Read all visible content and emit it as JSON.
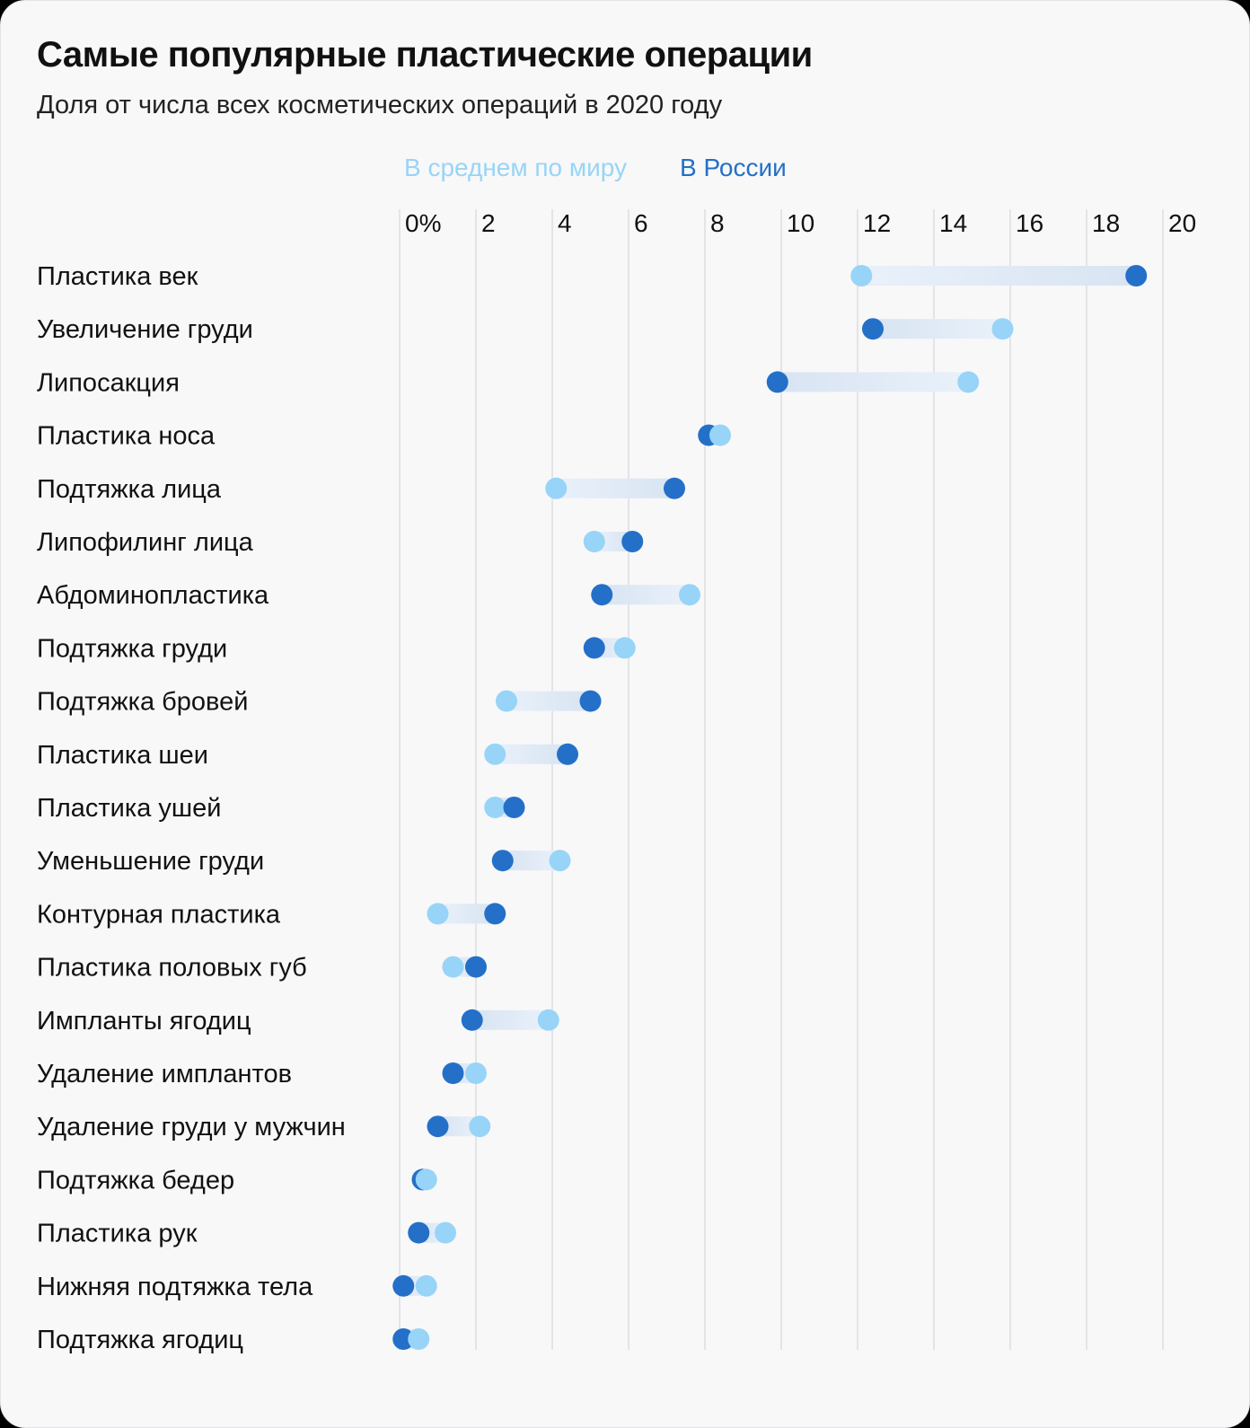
{
  "title": "Самые популярные пластические операции",
  "subtitle": "Доля от числа всех косметических операций в 2020 году",
  "colors": {
    "world": "#98d4f7",
    "russia": "#2470c8",
    "grid": "#dcdde0",
    "text": "#111111"
  },
  "chart_data": {
    "type": "dumbbell",
    "title": "Самые популярные пластические операции",
    "subtitle": "Доля от числа всех косметических операций в 2020 году",
    "xlim": [
      0,
      20
    ],
    "xticks": [
      0,
      2,
      4,
      6,
      8,
      10,
      12,
      14,
      16,
      18,
      20
    ],
    "xtick_labels": [
      "0%",
      "2",
      "4",
      "6",
      "8",
      "10",
      "12",
      "14",
      "16",
      "18",
      "20"
    ],
    "legend": [
      {
        "name": "В среднем по миру",
        "key": "world"
      },
      {
        "name": "В России",
        "key": "russia"
      }
    ],
    "legend_position": "top",
    "categories": [
      "Пластика век",
      "Увеличение груди",
      "Липосакция",
      "Пластика носа",
      "Подтяжка лица",
      "Липофилинг лица",
      "Абдоминопластика",
      "Подтяжка груди",
      "Подтяжка бровей",
      "Пластика шеи",
      "Пластика ушей",
      "Уменьшение груди",
      "Контурная пластика",
      "Пластика половых губ",
      "Импланты ягодиц",
      "Удаление имплантов",
      "Удаление груди у мужчин",
      "Подтяжка бедер",
      "Пластика рук",
      "Нижняя подтяжка тела",
      "Подтяжка ягодиц"
    ],
    "series": [
      {
        "name": "В среднем по миру",
        "key": "world",
        "values": [
          12.1,
          15.8,
          14.9,
          8.4,
          4.1,
          5.1,
          7.6,
          5.9,
          2.8,
          2.5,
          2.5,
          4.2,
          1.0,
          1.4,
          3.9,
          2.0,
          2.1,
          0.7,
          1.2,
          0.7,
          0.5
        ]
      },
      {
        "name": "В России",
        "key": "russia",
        "values": [
          19.3,
          12.4,
          9.9,
          8.1,
          7.2,
          6.1,
          5.3,
          5.1,
          5.0,
          4.4,
          3.0,
          2.7,
          2.5,
          2.0,
          1.9,
          1.4,
          1.0,
          0.6,
          0.5,
          0.1,
          0.1
        ]
      }
    ]
  }
}
